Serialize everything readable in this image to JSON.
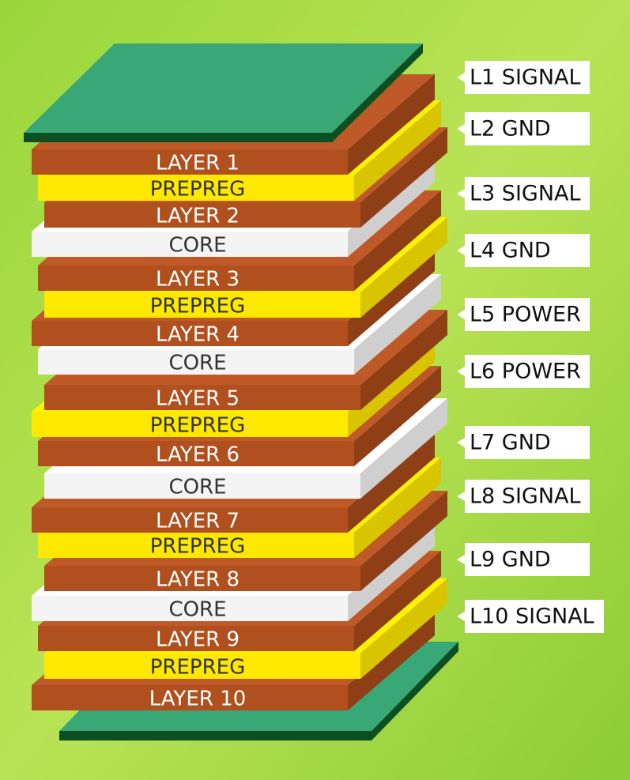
{
  "stack": [
    "LAYER 1",
    "PREPREG",
    "LAYER 2",
    "CORE",
    "LAYER 3",
    "PREPREG",
    "LAYER 4",
    "CORE",
    "LAYER 5",
    "PREPREG",
    "LAYER 6",
    "CORE",
    "LAYER 7",
    "PREPREG",
    "LAYER 8",
    "CORE",
    "LAYER 9",
    "PREPREG",
    "LAYER 10"
  ],
  "side_labels": [
    "L1 SIGNAL",
    "L2 GND",
    "L3 SIGNAL",
    "L4 GND",
    "L5 POWER",
    "L6 POWER",
    "L7 GND",
    "L8 SIGNAL",
    "L9 GND",
    "L10 SIGNAL"
  ]
}
